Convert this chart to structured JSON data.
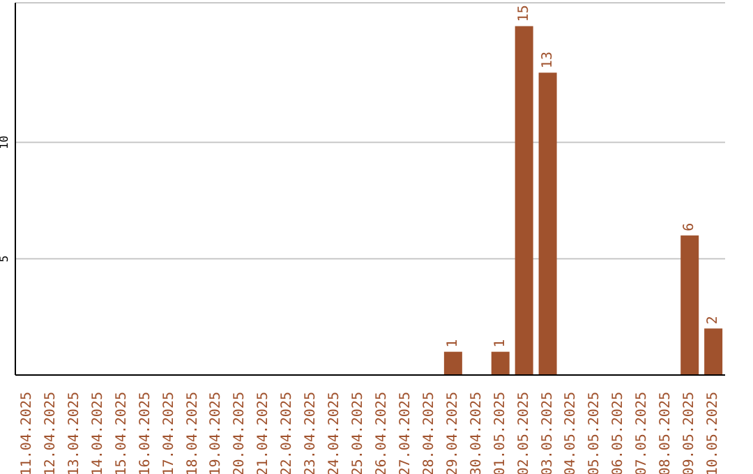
{
  "chart_data": {
    "type": "bar",
    "categories": [
      "11.04.2025",
      "12.04.2025",
      "13.04.2025",
      "14.04.2025",
      "15.04.2025",
      "16.04.2025",
      "17.04.2025",
      "18.04.2025",
      "19.04.2025",
      "20.04.2025",
      "21.04.2025",
      "22.04.2025",
      "23.04.2025",
      "24.04.2025",
      "25.04.2025",
      "26.04.2025",
      "27.04.2025",
      "28.04.2025",
      "29.04.2025",
      "30.04.2025",
      "01.05.2025",
      "02.05.2025",
      "03.05.2025",
      "04.05.2025",
      "05.05.2025",
      "06.05.2025",
      "07.05.2025",
      "08.05.2025",
      "09.05.2025",
      "10.05.2025"
    ],
    "values": [
      0,
      0,
      0,
      0,
      0,
      0,
      0,
      0,
      0,
      0,
      0,
      0,
      0,
      0,
      0,
      0,
      0,
      0,
      1,
      0,
      1,
      15,
      13,
      0,
      0,
      0,
      0,
      0,
      6,
      2
    ],
    "value_labels": [
      null,
      null,
      null,
      null,
      null,
      null,
      null,
      null,
      null,
      null,
      null,
      null,
      null,
      null,
      null,
      null,
      null,
      null,
      "1",
      null,
      "1",
      "15",
      "13",
      null,
      null,
      null,
      null,
      null,
      "6",
      "2"
    ],
    "color": "#a0522d",
    "ylim": [
      0,
      16
    ],
    "yticks": [
      5,
      10
    ],
    "grid": "y"
  }
}
